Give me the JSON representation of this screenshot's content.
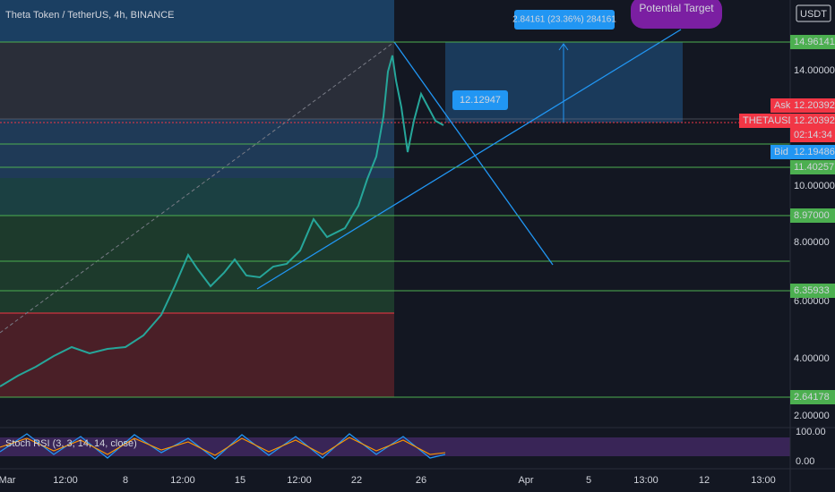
{
  "header": {
    "title": "Theta Token / TetherUS, 4h, BINANCE",
    "currency": "USDT"
  },
  "price_axis": [
    "14.00000",
    "10.00000",
    "8.00000",
    "6.00000",
    "4.00000",
    "2.00000"
  ],
  "levels": [
    "14.96141",
    "11.40257",
    "8.97000",
    "6.35933",
    "2.64178"
  ],
  "quote": {
    "ask_label": "Ask",
    "ask": "12.20392",
    "symbol": "THETAUSDT",
    "price": "12.20392",
    "countdown": "02:14:34",
    "bid_label": "Bid",
    "bid": "12.19486"
  },
  "rsi": {
    "title": "Stoch RSI (3, 3, 14, 14, close)",
    "axis": [
      "100.00",
      "0.00"
    ]
  },
  "time_axis": [
    "Mar",
    "12:00",
    "8",
    "12:00",
    "15",
    "12:00",
    "22",
    "26",
    "Apr",
    "5",
    "13:00",
    "12",
    "13:00"
  ],
  "annotations": {
    "price_callout": "12.12947",
    "projection": "2.84161 (23.36%) 284161",
    "target": "Potential Target"
  }
}
